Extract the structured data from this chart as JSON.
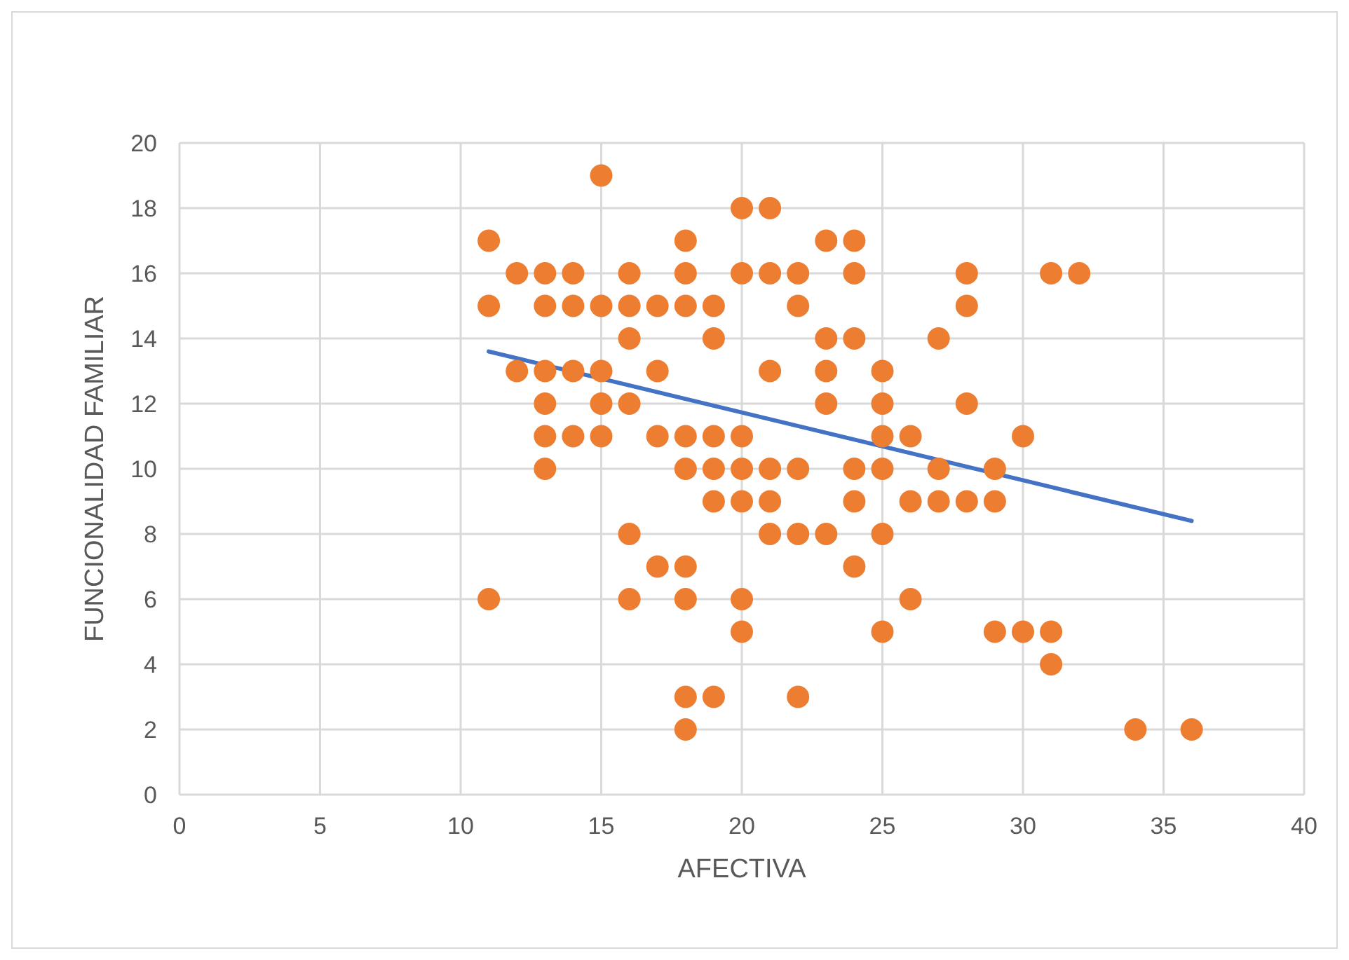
{
  "chart_data": {
    "type": "scatter",
    "xlabel": "AFECTIVA",
    "ylabel": "FUNCIONALIDAD FAMILIAR",
    "xlim": [
      0,
      40
    ],
    "xticks": [
      0,
      5,
      10,
      15,
      20,
      25,
      30,
      35,
      40
    ],
    "ylim": [
      0,
      20
    ],
    "yticks": [
      0,
      2,
      4,
      6,
      8,
      10,
      12,
      14,
      16,
      18,
      20
    ],
    "grid": true,
    "series": [
      {
        "marker": "circle",
        "color": "#ed7d31",
        "x": [
          11,
          11,
          11,
          12,
          12,
          13,
          13,
          13,
          13,
          13,
          13,
          14,
          14,
          14,
          14,
          15,
          15,
          15,
          15,
          15,
          16,
          16,
          16,
          16,
          16,
          16,
          17,
          17,
          17,
          17,
          18,
          18,
          18,
          18,
          18,
          18,
          18,
          18,
          18,
          19,
          19,
          19,
          19,
          19,
          19,
          20,
          20,
          20,
          20,
          20,
          20,
          20,
          21,
          21,
          21,
          21,
          21,
          21,
          22,
          22,
          22,
          22,
          22,
          23,
          23,
          23,
          23,
          23,
          24,
          24,
          24,
          24,
          24,
          24,
          25,
          25,
          25,
          25,
          25,
          25,
          26,
          26,
          26,
          27,
          27,
          27,
          28,
          28,
          28,
          28,
          29,
          29,
          29,
          30,
          30,
          31,
          31,
          31,
          32,
          34,
          36
        ],
        "values": [
          17,
          15,
          6,
          16,
          13,
          16,
          15,
          13,
          12,
          11,
          10,
          16,
          15,
          13,
          11,
          19,
          15,
          13,
          12,
          11,
          16,
          15,
          14,
          12,
          8,
          6,
          15,
          13,
          11,
          7,
          17,
          16,
          15,
          11,
          10,
          7,
          6,
          3,
          2,
          15,
          14,
          11,
          10,
          9,
          3,
          18,
          16,
          11,
          10,
          9,
          6,
          5,
          18,
          16,
          13,
          10,
          9,
          8,
          16,
          15,
          10,
          8,
          3,
          17,
          14,
          13,
          12,
          8,
          17,
          16,
          14,
          10,
          9,
          7,
          13,
          12,
          11,
          10,
          8,
          5,
          11,
          9,
          6,
          14,
          10,
          9,
          16,
          15,
          12,
          9,
          10,
          9,
          5,
          11,
          5,
          16,
          5,
          4,
          16,
          2,
          2
        ]
      },
      {
        "type": "line",
        "marker": "none",
        "color": "#4472c4",
        "x": [
          11,
          36
        ],
        "values": [
          13.6,
          8.4
        ]
      }
    ]
  }
}
